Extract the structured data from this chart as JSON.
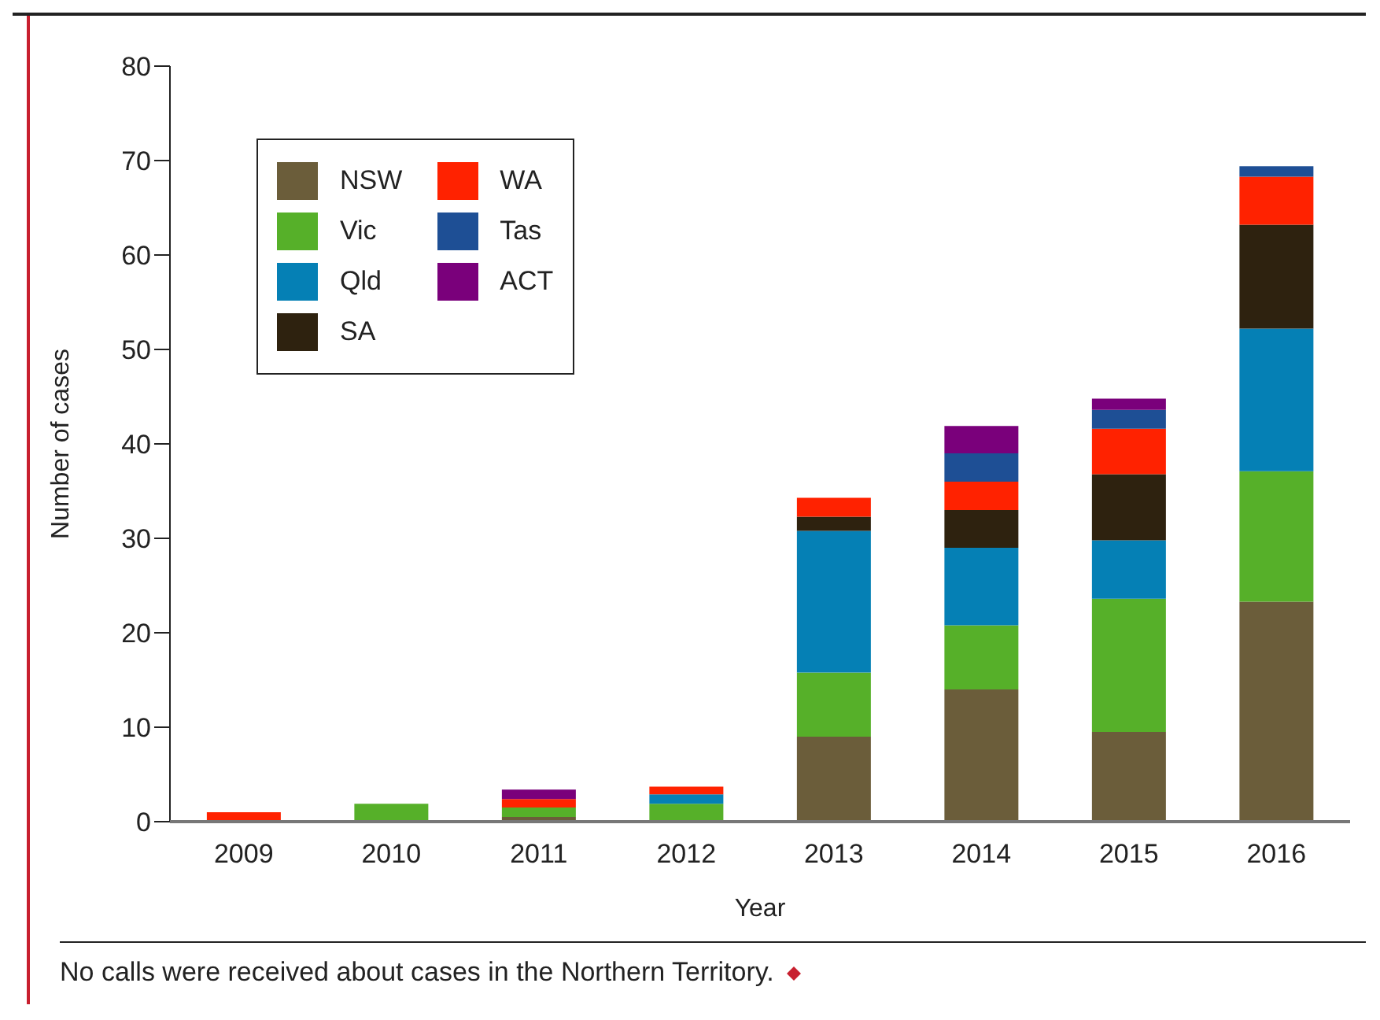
{
  "chart_data": {
    "type": "bar",
    "stacked": true,
    "xlabel": "Year",
    "ylabel": "Number of cases",
    "categories": [
      "2009",
      "2010",
      "2011",
      "2012",
      "2013",
      "2014",
      "2015",
      "2016"
    ],
    "series": [
      {
        "name": "NSW",
        "color": "#6b5d3a",
        "values": [
          0,
          0,
          0.5,
          0,
          9,
          14,
          9.5,
          23.3
        ]
      },
      {
        "name": "Vic",
        "color": "#56b029",
        "values": [
          0,
          1.9,
          1,
          1.9,
          6.8,
          6.8,
          14.1,
          13.8
        ]
      },
      {
        "name": "Qld",
        "color": "#0580b5",
        "values": [
          0,
          0,
          0,
          1,
          15,
          8.2,
          6.2,
          15.1
        ]
      },
      {
        "name": "SA",
        "color": "#2e220f",
        "values": [
          0,
          0,
          0,
          0,
          1.5,
          4,
          7,
          11
        ]
      },
      {
        "name": "WA",
        "color": "#ff2200",
        "values": [
          1,
          0,
          0.9,
          0.8,
          2,
          3,
          4.8,
          5.1
        ]
      },
      {
        "name": "Tas",
        "color": "#1e4f95",
        "values": [
          0,
          0,
          0,
          0,
          0,
          3,
          2,
          1.1
        ]
      },
      {
        "name": "ACT",
        "color": "#7a007b",
        "values": [
          0,
          0,
          1,
          0,
          0,
          2.9,
          1.2,
          0
        ]
      }
    ],
    "ylim": [
      0,
      80
    ],
    "yticks": [
      0,
      10,
      20,
      30,
      40,
      50,
      60,
      70,
      80
    ],
    "legend": "top left",
    "annotations": [
      "No calls were received about cases in the Northern Territory."
    ]
  }
}
